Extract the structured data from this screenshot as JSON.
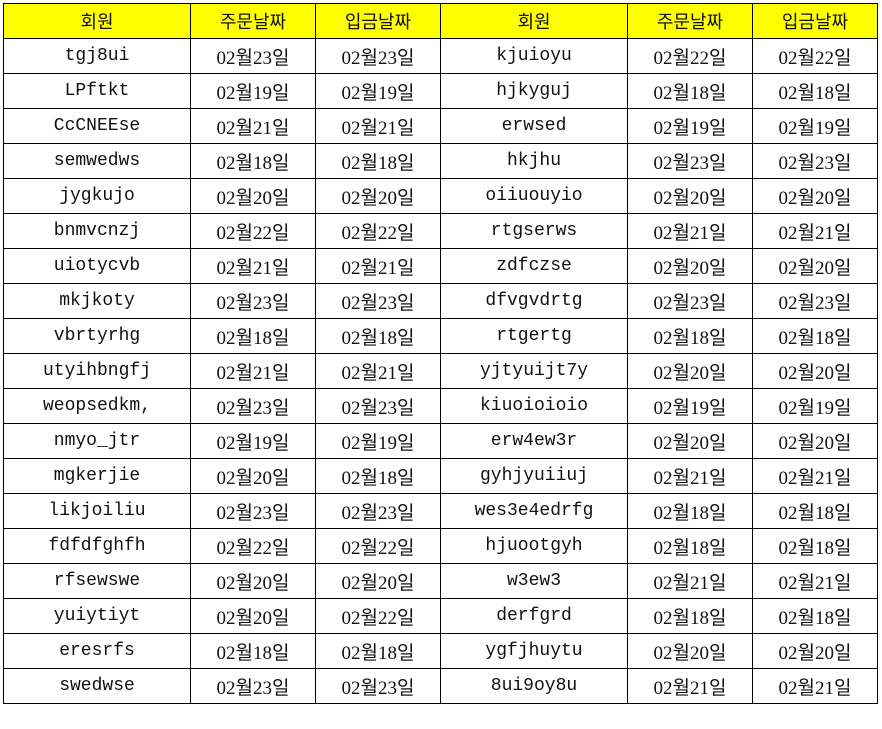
{
  "colors": {
    "header_bg": "#ffff00",
    "grid": "#000000"
  },
  "headers": [
    "회원",
    "주문날짜",
    "입금날짜",
    "회원",
    "주문날짜",
    "입금날짜"
  ],
  "rows": [
    [
      "tgj8ui",
      "02월23일",
      "02월23일",
      "kjuioyu",
      "02월22일",
      "02월22일"
    ],
    [
      "LPftkt",
      "02월19일",
      "02월19일",
      "hjkyguj",
      "02월18일",
      "02월18일"
    ],
    [
      "CcCNEEse",
      "02월21일",
      "02월21일",
      "erwsed",
      "02월19일",
      "02월19일"
    ],
    [
      "semwedws",
      "02월18일",
      "02월18일",
      "hkjhu",
      "02월23일",
      "02월23일"
    ],
    [
      "jygkujo",
      "02월20일",
      "02월20일",
      "oiiuouyio",
      "02월20일",
      "02월20일"
    ],
    [
      "bnmvcnzj",
      "02월22일",
      "02월22일",
      "rtgserws",
      "02월21일",
      "02월21일"
    ],
    [
      "uiotycvb",
      "02월21일",
      "02월21일",
      "zdfczse",
      "02월20일",
      "02월20일"
    ],
    [
      "mkjkoty",
      "02월23일",
      "02월23일",
      "dfvgvdrtg",
      "02월23일",
      "02월23일"
    ],
    [
      "vbrtyrhg",
      "02월18일",
      "02월18일",
      "rtgertg",
      "02월18일",
      "02월18일"
    ],
    [
      "utyihbngfj",
      "02월21일",
      "02월21일",
      "yjtyuijt7y",
      "02월20일",
      "02월20일"
    ],
    [
      "weopsedkm,",
      "02월23일",
      "02월23일",
      "kiuoioioio",
      "02월19일",
      "02월19일"
    ],
    [
      "nmyo_jtr",
      "02월19일",
      "02월19일",
      "erw4ew3r",
      "02월20일",
      "02월20일"
    ],
    [
      "mgkerjie",
      "02월20일",
      "02월18일",
      "gyhjyuiiuj",
      "02월21일",
      "02월21일"
    ],
    [
      "likjoiliu",
      "02월23일",
      "02월23일",
      "wes3e4edrfg",
      "02월18일",
      "02월18일"
    ],
    [
      "fdfdfghfh",
      "02월22일",
      "02월22일",
      "hjuootgyh",
      "02월18일",
      "02월18일"
    ],
    [
      "rfsewswe",
      "02월20일",
      "02월20일",
      "w3ew3",
      "02월21일",
      "02월21일"
    ],
    [
      "yuiytiyt",
      "02월20일",
      "02월22일",
      "derfgrd",
      "02월18일",
      "02월18일"
    ],
    [
      "eresrfs",
      "02월18일",
      "02월18일",
      "ygfjhuytu",
      "02월20일",
      "02월20일"
    ],
    [
      "swedwse",
      "02월23일",
      "02월23일",
      "8ui9oy8u",
      "02월21일",
      "02월21일"
    ]
  ]
}
